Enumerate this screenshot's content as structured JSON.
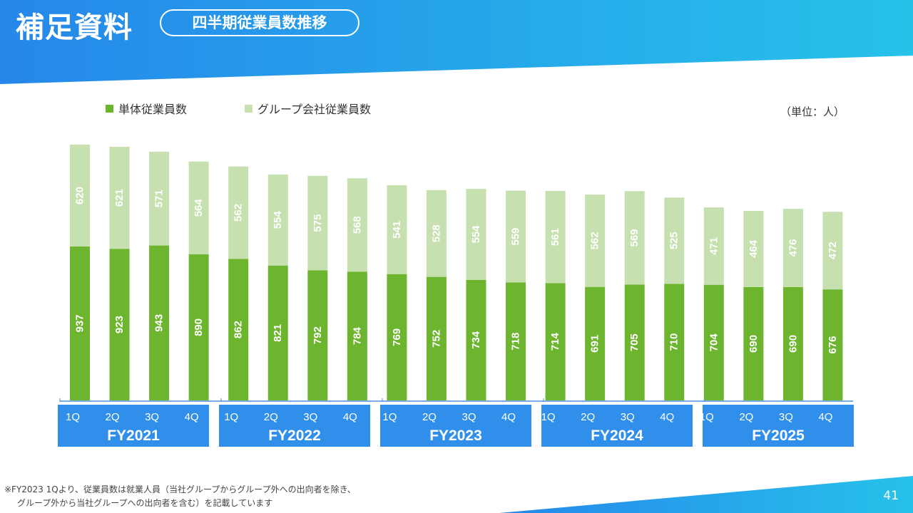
{
  "header": {
    "title": "補足資料",
    "subtitle": "四半期従業員数推移"
  },
  "unit": "（単位：人）",
  "footnote": [
    "※FY2023 1Qより、従業員数は就業人員（当社グループからグループ外への出向者を除き、",
    "グループ外から当社グループへの出向者を含む）を記載しています"
  ],
  "page_number": "41",
  "colors": {
    "standalone": "#6db52f",
    "group": "#c6e0b0",
    "header": "#2b8fe8",
    "fy_box": "#2f8fea"
  },
  "chart_data": {
    "type": "bar",
    "stacked": true,
    "title": "四半期従業員数推移",
    "ylabel": "人",
    "ylim": [
      0,
      1557
    ],
    "legend_position": "top-left",
    "fiscal_years": [
      "FY2021",
      "FY2022",
      "FY2023",
      "FY2024",
      "FY2025"
    ],
    "quarters": [
      "1Q",
      "2Q",
      "3Q",
      "4Q"
    ],
    "series": [
      {
        "name": "単体従業員数",
        "values": [
          937,
          923,
          943,
          890,
          862,
          821,
          792,
          784,
          769,
          752,
          734,
          718,
          714,
          691,
          705,
          710,
          704,
          690,
          690,
          676
        ]
      },
      {
        "name": "グループ会社従業員数",
        "values": [
          620,
          621,
          571,
          564,
          562,
          554,
          575,
          568,
          541,
          528,
          554,
          559,
          561,
          562,
          569,
          525,
          471,
          464,
          476,
          472
        ]
      }
    ]
  }
}
